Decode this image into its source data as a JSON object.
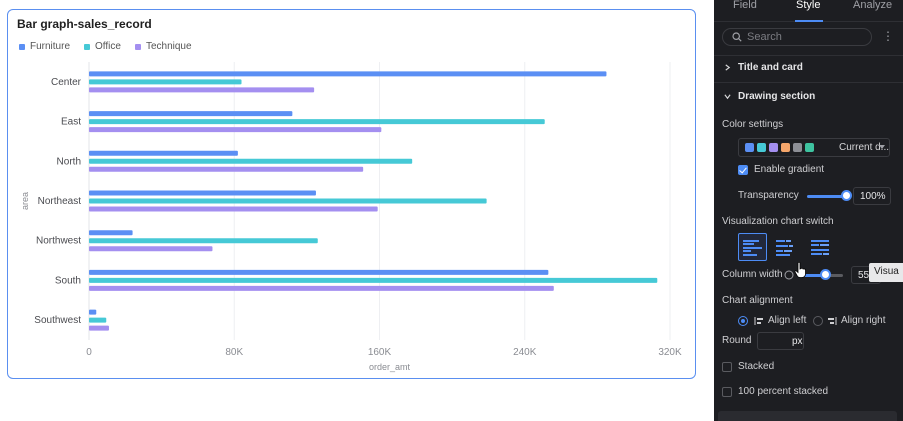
{
  "chart_card": {
    "title": "Bar graph-sales_record"
  },
  "legend": [
    {
      "label": "Furniture",
      "color": "#5b8ff4"
    },
    {
      "label": "Office",
      "color": "#46c9d6"
    },
    {
      "label": "Technique",
      "color": "#a48ff0"
    }
  ],
  "chart_data": {
    "type": "bar",
    "orientation": "horizontal",
    "title": "Bar graph-sales_record",
    "xlabel": "order_amt",
    "ylabel": "area",
    "xlim": [
      0,
      320000
    ],
    "x_ticks": [
      "0",
      "80K",
      "160K",
      "240K",
      "320K"
    ],
    "categories": [
      "Center",
      "East",
      "North",
      "Northeast",
      "Northwest",
      "South",
      "Southwest"
    ],
    "series": [
      {
        "name": "Furniture",
        "color": "#5b8ff4",
        "values": [
          285000,
          112000,
          82000,
          125000,
          24000,
          253000,
          4000
        ]
      },
      {
        "name": "Office",
        "color": "#46c9d6",
        "values": [
          84000,
          251000,
          178000,
          219000,
          126000,
          313000,
          9500
        ]
      },
      {
        "name": "Technique",
        "color": "#a48ff0",
        "values": [
          124000,
          161000,
          151000,
          159000,
          68000,
          256000,
          11000
        ]
      }
    ],
    "grid": true,
    "legend_position": "top-left"
  },
  "panel": {
    "tabs": [
      "Field",
      "Style",
      "Analyze"
    ],
    "active_tab": "Style",
    "search_placeholder": "Search",
    "sections": {
      "title_and_card": "Title and card",
      "drawing_section": "Drawing section"
    },
    "color_settings": {
      "label": "Color settings",
      "swatches": [
        "#5b8ff4",
        "#46c9d6",
        "#a48ff0",
        "#f5a66b",
        "#8d8f96",
        "#3ec3a0"
      ],
      "selected_text": "Current d..."
    },
    "enable_gradient": {
      "label": "Enable gradient",
      "checked": true
    },
    "transparency": {
      "label": "Transparency",
      "value": "100%",
      "level": 1.0
    },
    "viz_switch": {
      "label": "Visualization chart switch"
    },
    "column_width": {
      "label": "Column width",
      "value": "55",
      "level": 0.55
    },
    "tooltip_text": "Visua",
    "chart_alignment": {
      "label": "Chart alignment",
      "options": [
        "Align left",
        "Align right"
      ],
      "selected": "Align left"
    },
    "round": {
      "label": "Round",
      "unit": "px",
      "value": ""
    },
    "stacked": {
      "label": "Stacked",
      "checked": false
    },
    "percent_stacked": {
      "label": "100 percent stacked",
      "checked": false
    }
  }
}
